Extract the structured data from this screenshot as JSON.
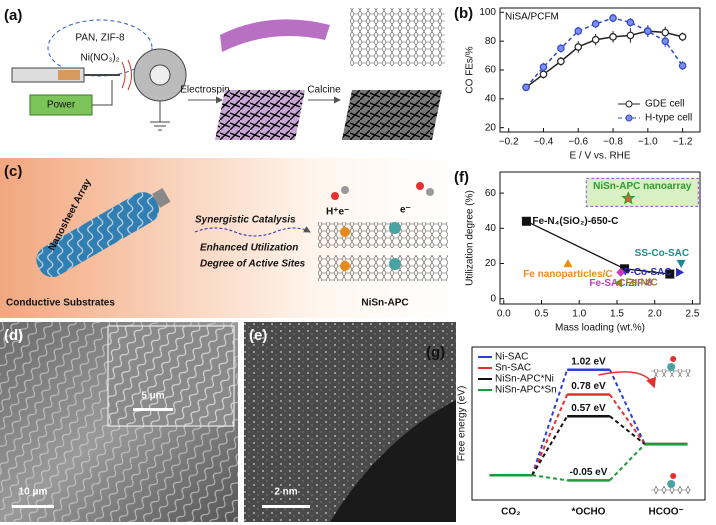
{
  "panels": {
    "a": {
      "label": "(a)",
      "solution": "PAN, ZIF-8",
      "salt": "Ni(NO₃)₂",
      "power": "Power",
      "step1": "Electrospin",
      "step2": "Calcine"
    },
    "c": {
      "label": "(c)",
      "array": "Nanosheet Array",
      "line1": "Synergistic Catalysis",
      "line2": "Enhanced Utilization",
      "line3": "Degree of Active Sites",
      "substrate": "Conductive Substrates",
      "product": "NiSn-APC",
      "proton": "H⁺e⁻",
      "electron": "e⁻"
    },
    "d": {
      "label": "(d)",
      "inset_scale": "5 μm",
      "scale": "10 μm"
    },
    "e": {
      "label": "(e)",
      "scale": "2 nm"
    }
  },
  "chart_data": [
    {
      "type": "line",
      "panel_label": "(b)",
      "annotation": "NiSA/PCFM",
      "x_label": "E / V vs. RHE",
      "y_label": "CO FEs/%",
      "x": [
        -0.3,
        -0.4,
        -0.5,
        -0.6,
        -0.7,
        -0.8,
        -0.9,
        -1.0,
        -1.1,
        -1.2
      ],
      "series": [
        {
          "name": "GDE cell",
          "color": "#222222",
          "marker_fill": "#ffffff",
          "dash": false,
          "values": [
            48,
            57,
            66,
            76,
            81,
            83,
            84,
            87,
            86,
            83
          ],
          "errors": [
            2,
            3,
            3,
            4,
            4,
            4,
            5,
            4,
            4,
            3
          ]
        },
        {
          "name": "H-type cell",
          "color": "#3347c4",
          "marker_fill": "#7b8ff0",
          "dash": true,
          "values": [
            48,
            62,
            75,
            87,
            92,
            96,
            93,
            87,
            80,
            63
          ],
          "errors": [
            2,
            3,
            3,
            3,
            3,
            3,
            3,
            4,
            4,
            3
          ]
        }
      ],
      "xlim": [
        -0.15,
        -1.3
      ],
      "xticks": [
        {
          "value": -0.2,
          "label": "−0.2"
        },
        {
          "value": -0.4,
          "label": "−0.4"
        },
        {
          "value": -0.6,
          "label": "−0.6"
        },
        {
          "value": -0.8,
          "label": "−0.8"
        },
        {
          "value": -1.0,
          "label": "−1.0"
        },
        {
          "value": -1.2,
          "label": "−1.2"
        }
      ],
      "ylim": [
        17,
        103
      ],
      "yticks": [
        20,
        40,
        60,
        80,
        100
      ],
      "legend": "lower right"
    },
    {
      "type": "scatter",
      "panel_label": "(f)",
      "x_label": "Mass loading (wt.%)",
      "y_label": "Utilization degree (%)",
      "series": [
        {
          "name": "Fe-N₄(SiO₂)-650-C",
          "color": "#111111",
          "marker": "square",
          "line": true,
          "x": [
            0.3,
            1.6,
            2.2
          ],
          "values": [
            44,
            17,
            14
          ]
        },
        {
          "name": "Fe nanoparticles/C",
          "color": "#f08a1c",
          "marker": "triangle-up",
          "x": [
            0.85
          ],
          "values": [
            20
          ]
        },
        {
          "name": "Fe-SAC/ZIF-8",
          "color": "#c43ac4",
          "marker": "diamond",
          "x": [
            1.55
          ],
          "values": [
            15
          ]
        },
        {
          "name": "Fe-N/C",
          "color": "#8a8a1c",
          "marker": "triangle-left",
          "x": [
            1.52
          ],
          "values": [
            9
          ]
        },
        {
          "name": "SS-Co-SAC",
          "color": "#1c8a8a",
          "marker": "triangle-down",
          "x": [
            2.35
          ],
          "values": [
            20
          ]
        },
        {
          "name": "P-Co-SAC",
          "color": "#2a2ab8",
          "marker": "triangle-right",
          "x": [
            2.33
          ],
          "values": [
            15
          ]
        },
        {
          "name": "NiSn-APC nanoarray",
          "color": "#e8553a",
          "marker": "star",
          "x": [
            1.65
          ],
          "values": [
            57
          ]
        }
      ],
      "xlim": [
        -0.05,
        2.6
      ],
      "xticks": [
        {
          "value": 0,
          "label": "0.0"
        },
        0.5,
        {
          "value": 1,
          "label": "1.0"
        },
        1.5,
        {
          "value": 2,
          "label": "2.0"
        },
        2.5
      ],
      "ylim": [
        -3,
        72
      ],
      "yticks": [
        0,
        20,
        40,
        60
      ]
    },
    {
      "type": "energy",
      "panel_label": "(g)",
      "y_label": "Free energy (eV)",
      "categories": [
        "CO₂",
        "*OCHO",
        "HCOO⁻"
      ],
      "series": [
        {
          "name": "Ni-SAC",
          "color": "#2d3fd6",
          "values": [
            0,
            1.02,
            0.3
          ],
          "value_labels": [
            null,
            "1.02 eV",
            null
          ]
        },
        {
          "name": "Sn-SAC",
          "color": "#e53030",
          "values": [
            0,
            0.78,
            0.3
          ],
          "value_labels": [
            null,
            "0.78 eV",
            null
          ]
        },
        {
          "name": "NiSn-APC*Ni",
          "color": "#111111",
          "values": [
            0,
            0.57,
            0.3
          ],
          "value_labels": [
            null,
            "0.57 eV",
            null
          ]
        },
        {
          "name": "NiSn-APC*Sn",
          "color": "#1f9a3a",
          "values": [
            0,
            -0.05,
            0.3
          ],
          "value_labels": [
            null,
            "-0.05 eV",
            null
          ]
        }
      ],
      "ylim": [
        -0.24,
        1.24
      ],
      "legend": "upper left"
    }
  ]
}
